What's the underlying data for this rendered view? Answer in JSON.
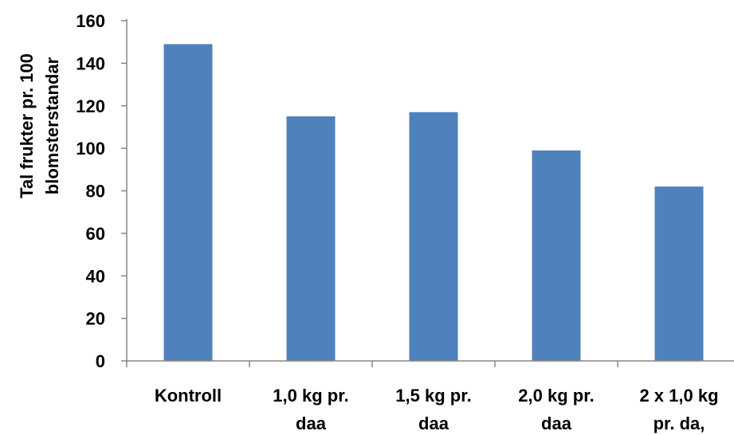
{
  "chart_data": {
    "type": "bar",
    "categories": [
      [
        "Kontroll"
      ],
      [
        "1,0 kg pr.",
        "daa"
      ],
      [
        "1,5 kg pr.",
        "daa"
      ],
      [
        "2,0 kg pr.",
        "daa"
      ],
      [
        "2 x 1,0 kg",
        "pr. da,"
      ]
    ],
    "values": [
      149,
      115,
      117,
      99,
      82
    ],
    "title": "",
    "xlabel": "",
    "ylabel": [
      "Tal frukter pr. 100",
      "blomsterstandar"
    ],
    "ylim": [
      0,
      160
    ],
    "yticks": [
      0,
      20,
      40,
      60,
      80,
      100,
      120,
      140,
      160
    ],
    "grid": false,
    "legend": "none",
    "colors": {
      "bar": "#4F81BD",
      "axis": "#868686",
      "text": "#000000"
    }
  }
}
